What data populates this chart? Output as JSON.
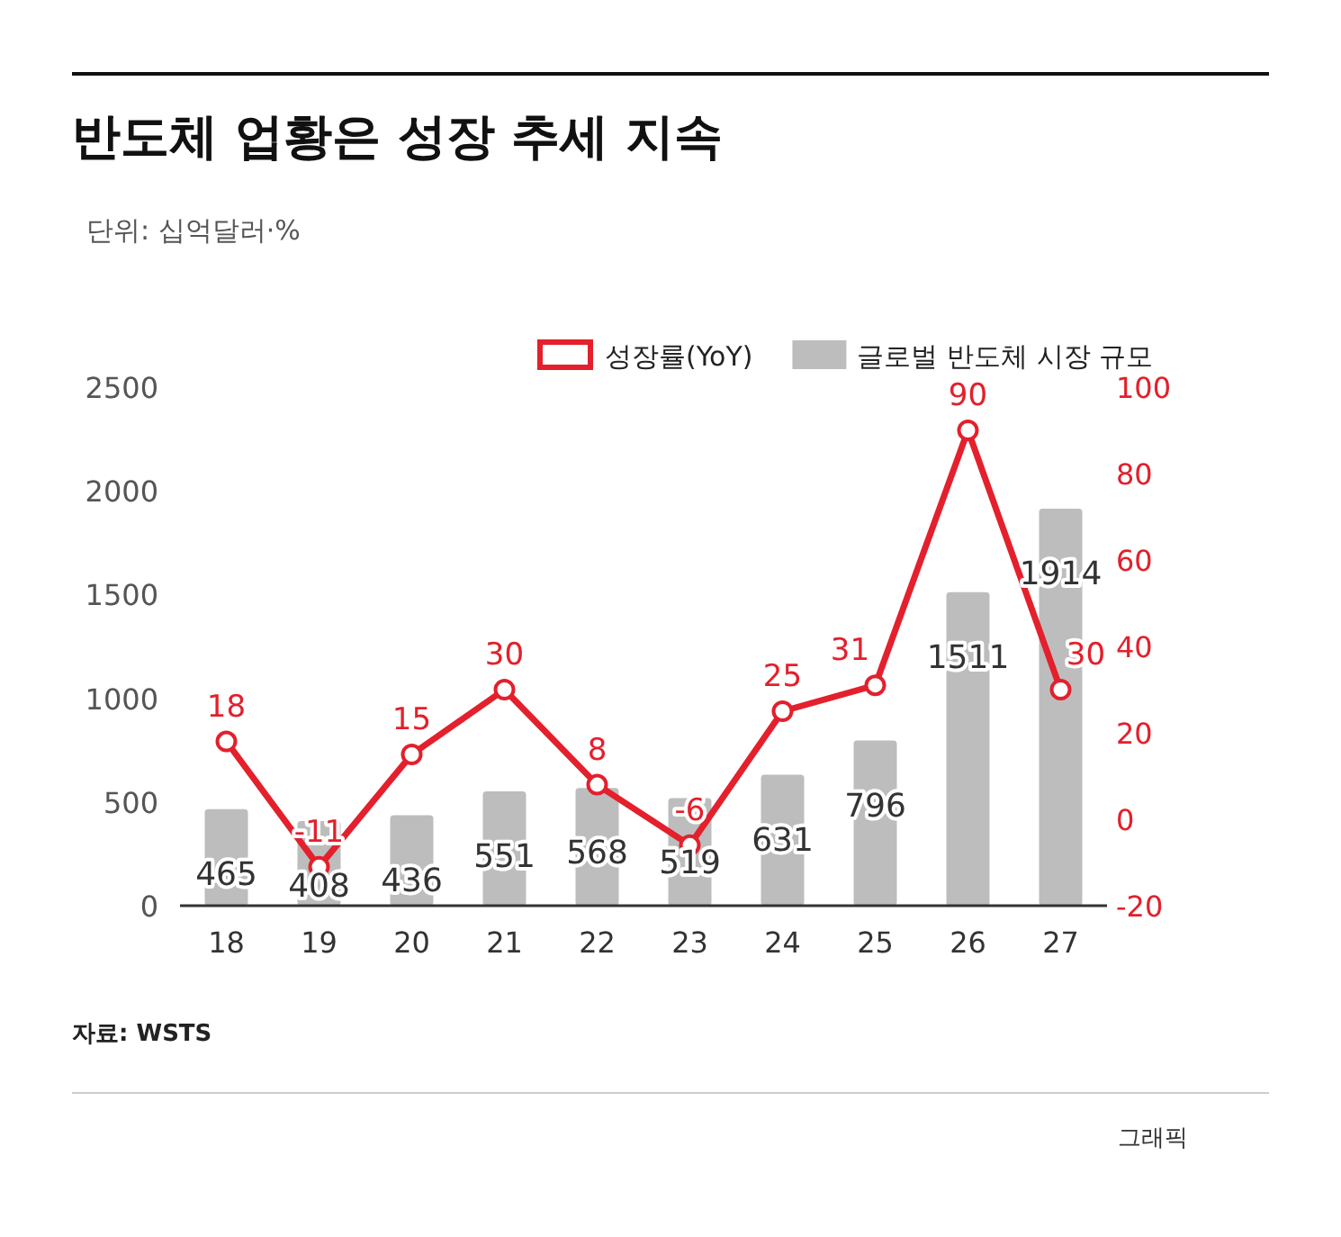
{
  "chart_data": {
    "type": "bar",
    "title": "반도체 업황은 성장 추세 지속",
    "subtitle": "단위: 십억달러·%",
    "categories": [
      "18",
      "19",
      "20",
      "21",
      "22",
      "23",
      "24",
      "25",
      "26",
      "27"
    ],
    "series": [
      {
        "name": "성장률(YoY)",
        "type": "line",
        "axis": "y2",
        "color": "#e3202c",
        "marker": "circle",
        "values": [
          18,
          -11,
          15,
          30,
          8,
          -6,
          25,
          31,
          90,
          30
        ]
      },
      {
        "name": "글로벌 반도체 시장 규모",
        "color": "#bdbdbd",
        "values": [
          465,
          408,
          436,
          551,
          568,
          519,
          631,
          796,
          1511,
          1914
        ]
      }
    ],
    "ylim": [
      0,
      2500
    ],
    "yticks": [
      0,
      500,
      1000,
      1500,
      2000,
      2500
    ],
    "y2lim": [
      -20,
      100
    ],
    "y2ticks": [
      -20,
      0,
      20,
      40,
      60,
      80,
      100
    ],
    "data_labels": true,
    "legend": "top right",
    "annotations": [
      "자료: WSTS",
      "그래픽"
    ]
  }
}
